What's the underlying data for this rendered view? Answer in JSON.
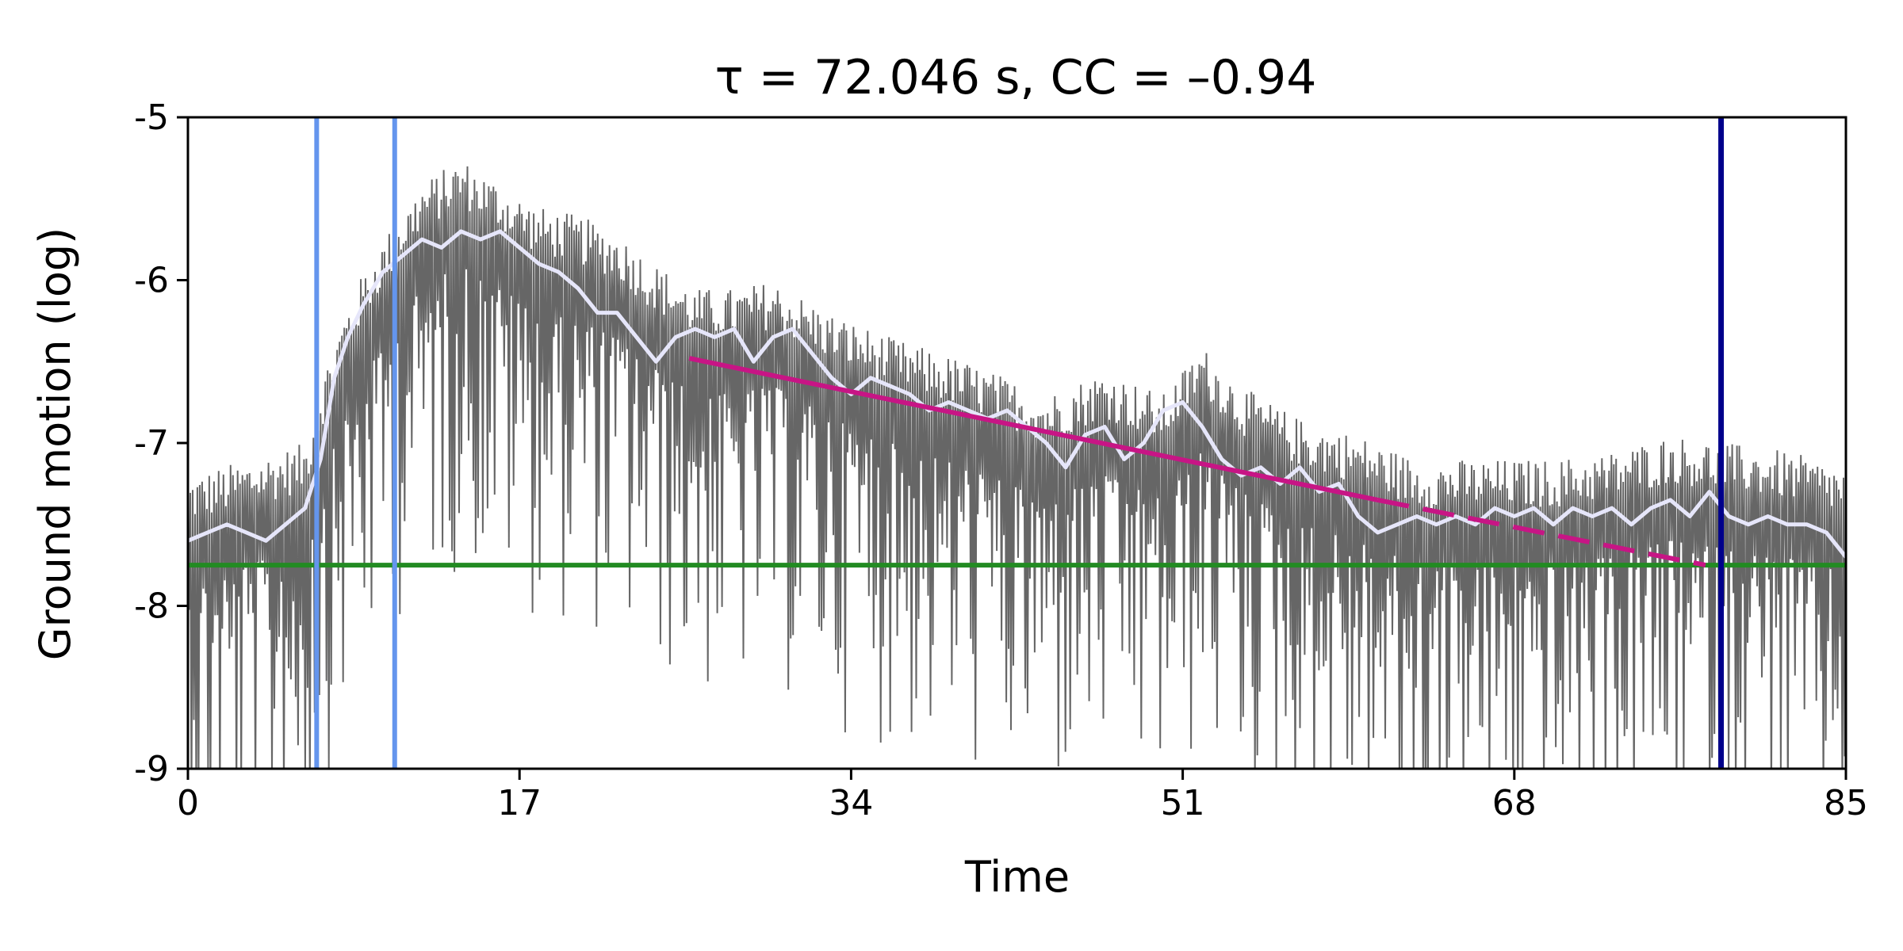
{
  "chart_data": {
    "type": "line",
    "title": "τ = 72.046 s, CC = –0.94",
    "xlabel": "Time",
    "ylabel": "Ground motion (log)",
    "xlim": [
      0,
      85
    ],
    "ylim": [
      -9,
      -5
    ],
    "xticks": [
      0,
      17,
      34,
      51,
      68,
      85
    ],
    "xtick_labels": [
      "0",
      "17",
      "34",
      "51",
      "68",
      "85"
    ],
    "yticks": [
      -9,
      -8,
      -7,
      -6,
      -5
    ],
    "ytick_labels": [
      "-9",
      "-8",
      "-7",
      "-6",
      "-5"
    ],
    "grid": false,
    "legend": "none",
    "series": [
      {
        "role": "raw-signal",
        "color": "#666666",
        "envelope_x": [
          0,
          3,
          6,
          7,
          8,
          9,
          10,
          12,
          14,
          16,
          18,
          20,
          22,
          24,
          26,
          28,
          30,
          33,
          36,
          40,
          44,
          47,
          50,
          52,
          54,
          57,
          60,
          63,
          66,
          70,
          73,
          76,
          79,
          82,
          85
        ],
        "envelope_y": [
          -7.55,
          -7.45,
          -7.35,
          -6.9,
          -6.55,
          -6.3,
          -6.1,
          -5.75,
          -5.6,
          -5.75,
          -5.9,
          -5.95,
          -6.05,
          -6.25,
          -6.4,
          -6.4,
          -6.35,
          -6.55,
          -6.7,
          -6.85,
          -7.05,
          -6.9,
          -7.05,
          -6.75,
          -7.0,
          -7.2,
          -7.3,
          -7.45,
          -7.45,
          -7.45,
          -7.4,
          -7.3,
          -7.35,
          -7.4,
          -7.5
        ]
      },
      {
        "role": "smoothed-envelope",
        "color": "#e6e6fa",
        "x": [
          0,
          1,
          2,
          3,
          4,
          5,
          6,
          6.8,
          7.5,
          8.2,
          9,
          10,
          11,
          12,
          13,
          14,
          15,
          16,
          17,
          18,
          19,
          20,
          21,
          22,
          23,
          24,
          25,
          26,
          27,
          28,
          29,
          30,
          31,
          32,
          33,
          34,
          35,
          36,
          37,
          38,
          39,
          40,
          41,
          42,
          43,
          44,
          45,
          46,
          47,
          48,
          49,
          50,
          51,
          52,
          53,
          54,
          55,
          56,
          57,
          58,
          59,
          60,
          61,
          62,
          63,
          64,
          65,
          66,
          67,
          68,
          69,
          70,
          71,
          72,
          73,
          74,
          75,
          76,
          77,
          78,
          79,
          80,
          81,
          82,
          83,
          84,
          85
        ],
        "y": [
          -7.6,
          -7.55,
          -7.5,
          -7.55,
          -7.6,
          -7.5,
          -7.4,
          -7.1,
          -6.6,
          -6.35,
          -6.15,
          -5.95,
          -5.85,
          -5.75,
          -5.8,
          -5.7,
          -5.75,
          -5.7,
          -5.8,
          -5.9,
          -5.95,
          -6.05,
          -6.2,
          -6.2,
          -6.35,
          -6.5,
          -6.35,
          -6.3,
          -6.35,
          -6.3,
          -6.5,
          -6.35,
          -6.3,
          -6.45,
          -6.6,
          -6.7,
          -6.6,
          -6.65,
          -6.7,
          -6.8,
          -6.75,
          -6.8,
          -6.85,
          -6.8,
          -6.9,
          -7.0,
          -7.15,
          -6.95,
          -6.9,
          -7.1,
          -7.0,
          -6.8,
          -6.75,
          -6.9,
          -7.1,
          -7.2,
          -7.15,
          -7.25,
          -7.15,
          -7.3,
          -7.25,
          -7.45,
          -7.55,
          -7.5,
          -7.45,
          -7.5,
          -7.45,
          -7.5,
          -7.4,
          -7.45,
          -7.4,
          -7.5,
          -7.4,
          -7.45,
          -7.4,
          -7.5,
          -7.4,
          -7.35,
          -7.45,
          -7.3,
          -7.45,
          -7.5,
          -7.45,
          -7.5,
          -7.5,
          -7.55,
          -7.7
        ]
      },
      {
        "role": "decay-fit",
        "color": "#c71585",
        "x": [
          25.7,
          61
        ],
        "y": [
          -6.48,
          -7.35
        ]
      },
      {
        "role": "decay-fit-extrapolated",
        "color": "#c71585",
        "style": "dashed",
        "x": [
          61,
          77.8
        ],
        "y": [
          -7.35,
          -7.75
        ]
      },
      {
        "role": "noise-level",
        "color": "#228b22",
        "x": [
          0,
          85
        ],
        "y": [
          -7.75,
          -7.75
        ]
      }
    ],
    "vlines": [
      {
        "x": 6.6,
        "color": "#6495ed"
      },
      {
        "x": 10.6,
        "color": "#6495ed"
      },
      {
        "x": 78.6,
        "color": "#00008b"
      }
    ]
  }
}
